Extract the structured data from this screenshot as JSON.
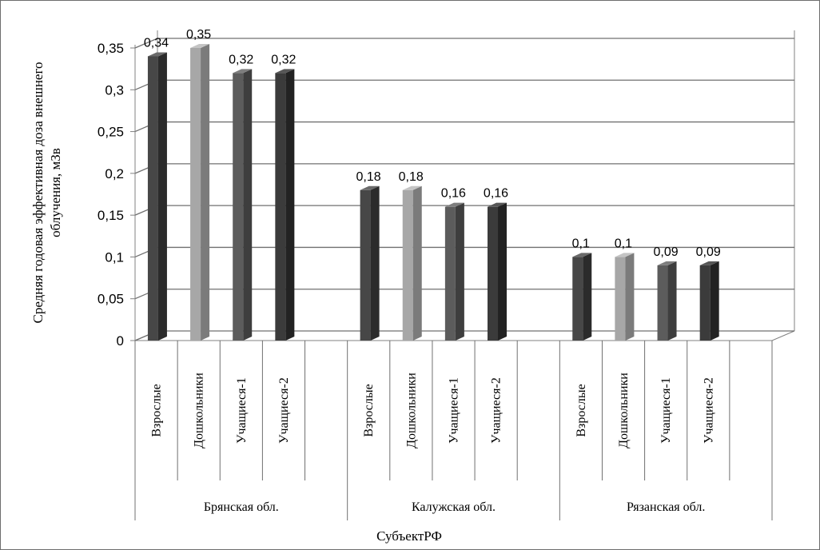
{
  "chart_data": {
    "type": "bar",
    "three_d": true,
    "title": "",
    "ylabel_lines": [
      "Средняя годовая эффективная доза внешнего",
      "облучения, мЗв"
    ],
    "xlabel": "СубъектРФ",
    "ylim": [
      0,
      0.35
    ],
    "yticks": [
      "0",
      "0,05",
      "0,1",
      "0,15",
      "0,2",
      "0,25",
      "0,3",
      "0,35"
    ],
    "grid": true,
    "legend": "none",
    "groups": [
      {
        "name": "Брянская обл.",
        "categories": [
          "Взрослые",
          "Дошкольники",
          "Учащиеся-1",
          "Учащиеся-2"
        ],
        "values": [
          0.34,
          0.35,
          0.32,
          0.32
        ],
        "labels": [
          "0,34",
          "0,35",
          "0,32",
          "0,32"
        ]
      },
      {
        "name": "Калужская обл.",
        "categories": [
          "Взрослые",
          "Дошкольники",
          "Учащиеся-1",
          "Учащиеся-2"
        ],
        "values": [
          0.18,
          0.18,
          0.16,
          0.16
        ],
        "labels": [
          "0,18",
          "0,18",
          "0,16",
          "0,16"
        ]
      },
      {
        "name": "Рязанская обл.",
        "categories": [
          "Взрослые",
          "Дошкольники",
          "Учащиеся-1",
          "Учащиеся-2"
        ],
        "values": [
          0.1,
          0.1,
          0.09,
          0.09
        ],
        "labels": [
          "0,1",
          "0,1",
          "0,09",
          "0,09"
        ]
      }
    ],
    "bar_colors": {
      "front": [
        "#474747",
        "#a7a7a7",
        "#5c5c5c",
        "#3b3b3b"
      ],
      "side": [
        "#2b2b2b",
        "#7b7b7b",
        "#3e3e3e",
        "#222222"
      ],
      "top": [
        "#6a6a6a",
        "#c4c4c4",
        "#7e7e7e",
        "#575757"
      ]
    }
  }
}
